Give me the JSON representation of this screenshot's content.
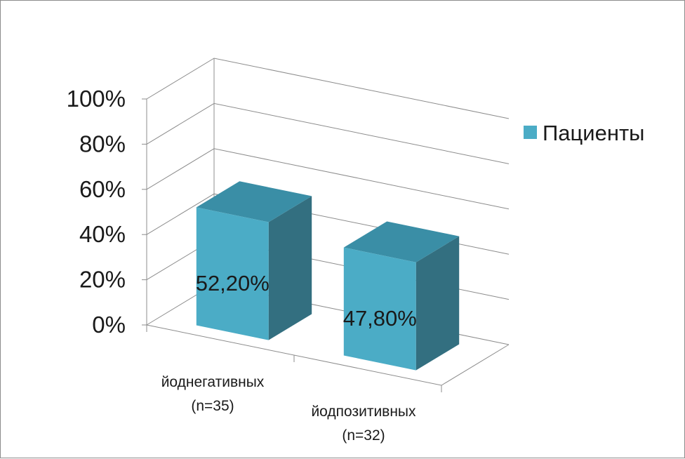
{
  "chart_data": {
    "type": "bar",
    "three_d": true,
    "categories": [
      "йоднегативных\n(n=35)",
      "йодпозитивных\n(n=32)"
    ],
    "series": [
      {
        "name": "Пациенты",
        "values": [
          52.2,
          47.8
        ],
        "data_labels": [
          "52,20%",
          "47,80%"
        ],
        "color": "#4bacc6"
      }
    ],
    "y_ticks": [
      "0%",
      "20%",
      "40%",
      "60%",
      "80%",
      "100%"
    ],
    "ylim": [
      0,
      100
    ],
    "grid": true,
    "legend": "right",
    "colors": {
      "front": "#4bacc6",
      "top": "#3a8ea6",
      "side": "#336f80",
      "grid": "#8c8c8c"
    }
  }
}
